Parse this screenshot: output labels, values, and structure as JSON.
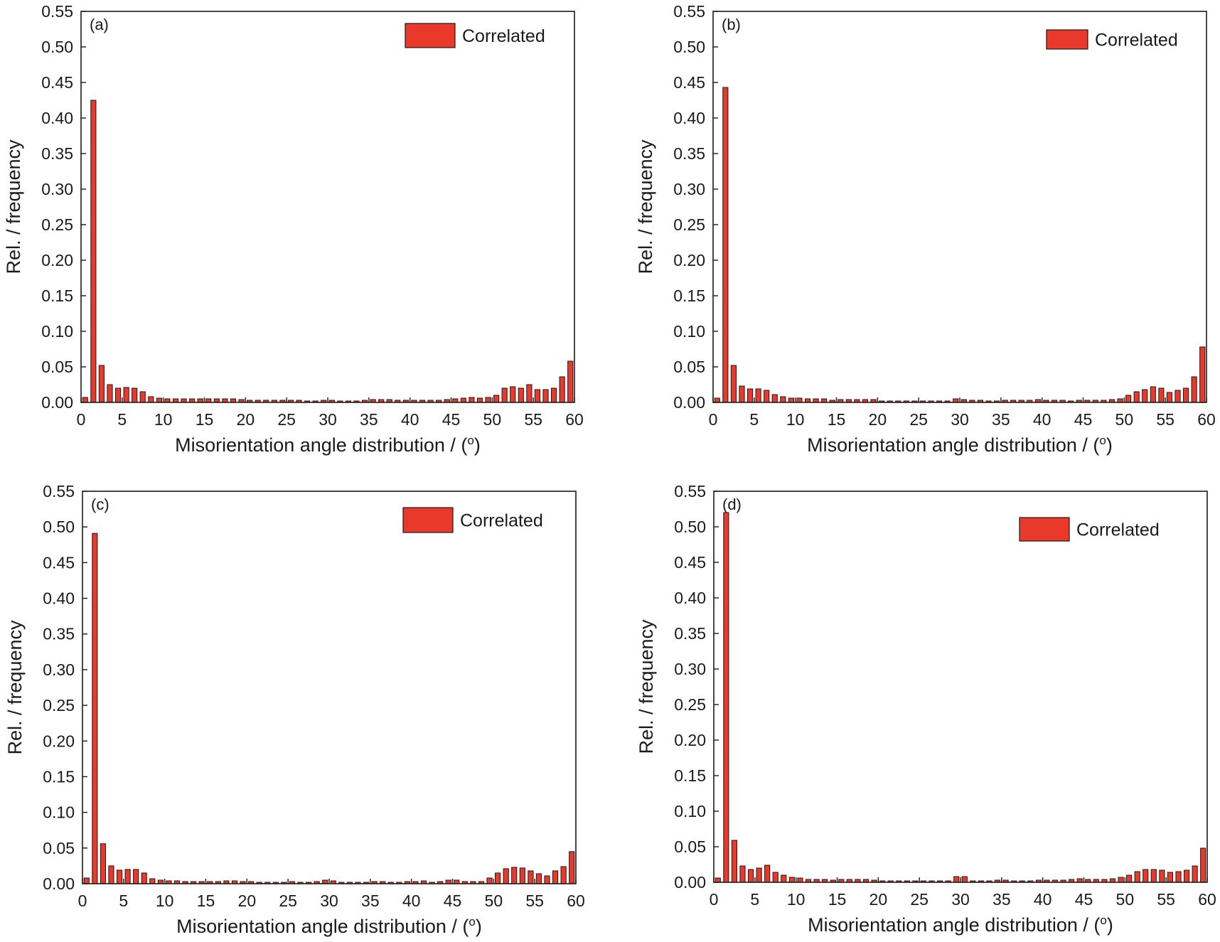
{
  "figure": {
    "colors": {
      "bar_fill": "#e8392a",
      "bar_stroke": "#1a1a1a",
      "axis": "#1a1a1a",
      "background": "#ffffff"
    }
  },
  "chart_data": [
    {
      "type": "bar",
      "panel_label": "(a)",
      "xlabel": "Misorientation angle distribution / (o)",
      "xlabel_main": "Misorientation angle distribution / (",
      "xlabel_sup": "o",
      "xlabel_close": ")",
      "ylabel": "Rel. / frequency",
      "xlim": [
        0,
        60
      ],
      "ylim": [
        0,
        0.55
      ],
      "xticks": [
        "0",
        "5",
        "10",
        "15",
        "20",
        "25",
        "30",
        "35",
        "40",
        "45",
        "50",
        "55",
        "60"
      ],
      "yticks": [
        "0.00",
        "0.05",
        "0.10",
        "0.15",
        "0.20",
        "0.25",
        "0.30",
        "0.35",
        "0.40",
        "0.45",
        "0.50",
        "0.55"
      ],
      "legend": "top-right",
      "grid": false,
      "series": [
        {
          "name": "Correlated",
          "bin_centers": [
            0.5,
            1.5,
            2.5,
            3.5,
            4.5,
            5.5,
            6.5,
            7.5,
            8.5,
            9.5,
            10.5,
            11.5,
            12.5,
            13.5,
            14.5,
            15.5,
            16.5,
            17.5,
            18.5,
            19.5,
            20.5,
            21.5,
            22.5,
            23.5,
            24.5,
            25.5,
            26.5,
            27.5,
            28.5,
            29.5,
            30.5,
            31.5,
            32.5,
            33.5,
            34.5,
            35.5,
            36.5,
            37.5,
            38.5,
            39.5,
            40.5,
            41.5,
            42.5,
            43.5,
            44.5,
            45.5,
            46.5,
            47.5,
            48.5,
            49.5,
            50.5,
            51.5,
            52.5,
            53.5,
            54.5,
            55.5,
            56.5,
            57.5,
            58.5,
            59.5
          ],
          "values": [
            0.007,
            0.425,
            0.052,
            0.025,
            0.02,
            0.021,
            0.02,
            0.015,
            0.008,
            0.006,
            0.005,
            0.005,
            0.005,
            0.005,
            0.005,
            0.005,
            0.005,
            0.005,
            0.005,
            0.004,
            0.003,
            0.003,
            0.003,
            0.003,
            0.003,
            0.003,
            0.003,
            0.002,
            0.002,
            0.003,
            0.003,
            0.002,
            0.002,
            0.002,
            0.003,
            0.004,
            0.004,
            0.004,
            0.003,
            0.003,
            0.003,
            0.003,
            0.003,
            0.003,
            0.004,
            0.005,
            0.006,
            0.007,
            0.006,
            0.007,
            0.01,
            0.02,
            0.022,
            0.02,
            0.025,
            0.018,
            0.018,
            0.02,
            0.036,
            0.058
          ]
        }
      ]
    },
    {
      "type": "bar",
      "panel_label": "(b)",
      "xlabel": "Misorientation angle distribution / (o)",
      "xlabel_main": "Misorientation angle distribution / (",
      "xlabel_sup": "o",
      "xlabel_close": ")",
      "ylabel": "Rel. / frequency",
      "xlim": [
        0,
        60
      ],
      "ylim": [
        0,
        0.55
      ],
      "xticks": [
        "0",
        "5",
        "10",
        "15",
        "20",
        "25",
        "30",
        "35",
        "40",
        "45",
        "50",
        "55",
        "60"
      ],
      "yticks": [
        "0.00",
        "0.05",
        "0.10",
        "0.15",
        "0.20",
        "0.25",
        "0.30",
        "0.35",
        "0.40",
        "0.45",
        "0.50",
        "0.55"
      ],
      "legend": "top-right",
      "grid": false,
      "series": [
        {
          "name": "Correlated",
          "bin_centers": [
            0.5,
            1.5,
            2.5,
            3.5,
            4.5,
            5.5,
            6.5,
            7.5,
            8.5,
            9.5,
            10.5,
            11.5,
            12.5,
            13.5,
            14.5,
            15.5,
            16.5,
            17.5,
            18.5,
            19.5,
            20.5,
            21.5,
            22.5,
            23.5,
            24.5,
            25.5,
            26.5,
            27.5,
            28.5,
            29.5,
            30.5,
            31.5,
            32.5,
            33.5,
            34.5,
            35.5,
            36.5,
            37.5,
            38.5,
            39.5,
            40.5,
            41.5,
            42.5,
            43.5,
            44.5,
            45.5,
            46.5,
            47.5,
            48.5,
            49.5,
            50.5,
            51.5,
            52.5,
            53.5,
            54.5,
            55.5,
            56.5,
            57.5,
            58.5,
            59.5
          ],
          "values": [
            0.006,
            0.443,
            0.052,
            0.023,
            0.019,
            0.019,
            0.017,
            0.011,
            0.008,
            0.006,
            0.006,
            0.005,
            0.005,
            0.005,
            0.003,
            0.004,
            0.004,
            0.004,
            0.004,
            0.004,
            0.002,
            0.002,
            0.002,
            0.002,
            0.002,
            0.002,
            0.002,
            0.002,
            0.002,
            0.005,
            0.004,
            0.003,
            0.003,
            0.002,
            0.002,
            0.003,
            0.003,
            0.003,
            0.003,
            0.004,
            0.003,
            0.003,
            0.003,
            0.002,
            0.003,
            0.003,
            0.003,
            0.003,
            0.004,
            0.005,
            0.01,
            0.015,
            0.018,
            0.022,
            0.02,
            0.014,
            0.017,
            0.02,
            0.036,
            0.078
          ]
        }
      ]
    },
    {
      "type": "bar",
      "panel_label": "(c)",
      "xlabel": "Misorientation angle distribution / (o)",
      "xlabel_main": "Misorientation angle distribution / (",
      "xlabel_sup": "o",
      "xlabel_close": ")",
      "ylabel": "Rel. / frequency",
      "xlim": [
        0,
        60
      ],
      "ylim": [
        0,
        0.55
      ],
      "xticks": [
        "0",
        "5",
        "10",
        "15",
        "20",
        "25",
        "30",
        "35",
        "40",
        "45",
        "50",
        "55",
        "60"
      ],
      "yticks": [
        "0.00",
        "0.05",
        "0.10",
        "0.15",
        "0.20",
        "0.25",
        "0.30",
        "0.35",
        "0.40",
        "0.45",
        "0.50",
        "0.55"
      ],
      "legend": "top-right",
      "grid": false,
      "series": [
        {
          "name": "Correlated",
          "bin_centers": [
            0.5,
            1.5,
            2.5,
            3.5,
            4.5,
            5.5,
            6.5,
            7.5,
            8.5,
            9.5,
            10.5,
            11.5,
            12.5,
            13.5,
            14.5,
            15.5,
            16.5,
            17.5,
            18.5,
            19.5,
            20.5,
            21.5,
            22.5,
            23.5,
            24.5,
            25.5,
            26.5,
            27.5,
            28.5,
            29.5,
            30.5,
            31.5,
            32.5,
            33.5,
            34.5,
            35.5,
            36.5,
            37.5,
            38.5,
            39.5,
            40.5,
            41.5,
            42.5,
            43.5,
            44.5,
            45.5,
            46.5,
            47.5,
            48.5,
            49.5,
            50.5,
            51.5,
            52.5,
            53.5,
            54.5,
            55.5,
            56.5,
            57.5,
            58.5,
            59.5
          ],
          "values": [
            0.008,
            0.491,
            0.056,
            0.025,
            0.019,
            0.02,
            0.02,
            0.015,
            0.007,
            0.005,
            0.004,
            0.004,
            0.003,
            0.003,
            0.003,
            0.003,
            0.003,
            0.004,
            0.004,
            0.003,
            0.003,
            0.002,
            0.002,
            0.002,
            0.002,
            0.003,
            0.002,
            0.002,
            0.003,
            0.005,
            0.004,
            0.002,
            0.002,
            0.002,
            0.002,
            0.003,
            0.003,
            0.002,
            0.002,
            0.003,
            0.003,
            0.004,
            0.002,
            0.003,
            0.005,
            0.005,
            0.003,
            0.003,
            0.003,
            0.008,
            0.015,
            0.021,
            0.023,
            0.022,
            0.018,
            0.014,
            0.011,
            0.018,
            0.024,
            0.045
          ]
        }
      ]
    },
    {
      "type": "bar",
      "panel_label": "(d)",
      "xlabel": "Misorientation angle distribution / (o)",
      "xlabel_main": "Misorientation angle distribution / (",
      "xlabel_sup": "o",
      "xlabel_close": ")",
      "ylabel": "Rel. / frequency",
      "xlim": [
        0,
        60
      ],
      "ylim": [
        0,
        0.55
      ],
      "xticks": [
        "0",
        "5",
        "10",
        "15",
        "20",
        "25",
        "30",
        "35",
        "40",
        "45",
        "50",
        "55",
        "60"
      ],
      "yticks": [
        "0.00",
        "0.05",
        "0.10",
        "0.15",
        "0.20",
        "0.25",
        "0.30",
        "0.35",
        "0.40",
        "0.45",
        "0.50",
        "0.55"
      ],
      "legend": "top-right",
      "grid": false,
      "series": [
        {
          "name": "Correlated",
          "bin_centers": [
            0.5,
            1.5,
            2.5,
            3.5,
            4.5,
            5.5,
            6.5,
            7.5,
            8.5,
            9.5,
            10.5,
            11.5,
            12.5,
            13.5,
            14.5,
            15.5,
            16.5,
            17.5,
            18.5,
            19.5,
            20.5,
            21.5,
            22.5,
            23.5,
            24.5,
            25.5,
            26.5,
            27.5,
            28.5,
            29.5,
            30.5,
            31.5,
            32.5,
            33.5,
            34.5,
            35.5,
            36.5,
            37.5,
            38.5,
            39.5,
            40.5,
            41.5,
            42.5,
            43.5,
            44.5,
            45.5,
            46.5,
            47.5,
            48.5,
            49.5,
            50.5,
            51.5,
            52.5,
            53.5,
            54.5,
            55.5,
            56.5,
            57.5,
            58.5,
            59.5
          ],
          "values": [
            0.006,
            0.52,
            0.059,
            0.023,
            0.018,
            0.02,
            0.024,
            0.014,
            0.01,
            0.007,
            0.006,
            0.004,
            0.004,
            0.004,
            0.003,
            0.004,
            0.004,
            0.004,
            0.004,
            0.003,
            0.002,
            0.002,
            0.002,
            0.002,
            0.002,
            0.002,
            0.002,
            0.002,
            0.002,
            0.008,
            0.008,
            0.002,
            0.002,
            0.002,
            0.003,
            0.003,
            0.002,
            0.002,
            0.002,
            0.003,
            0.003,
            0.003,
            0.003,
            0.004,
            0.005,
            0.004,
            0.004,
            0.004,
            0.005,
            0.007,
            0.01,
            0.015,
            0.018,
            0.018,
            0.017,
            0.014,
            0.015,
            0.017,
            0.023,
            0.048
          ]
        }
      ]
    }
  ]
}
